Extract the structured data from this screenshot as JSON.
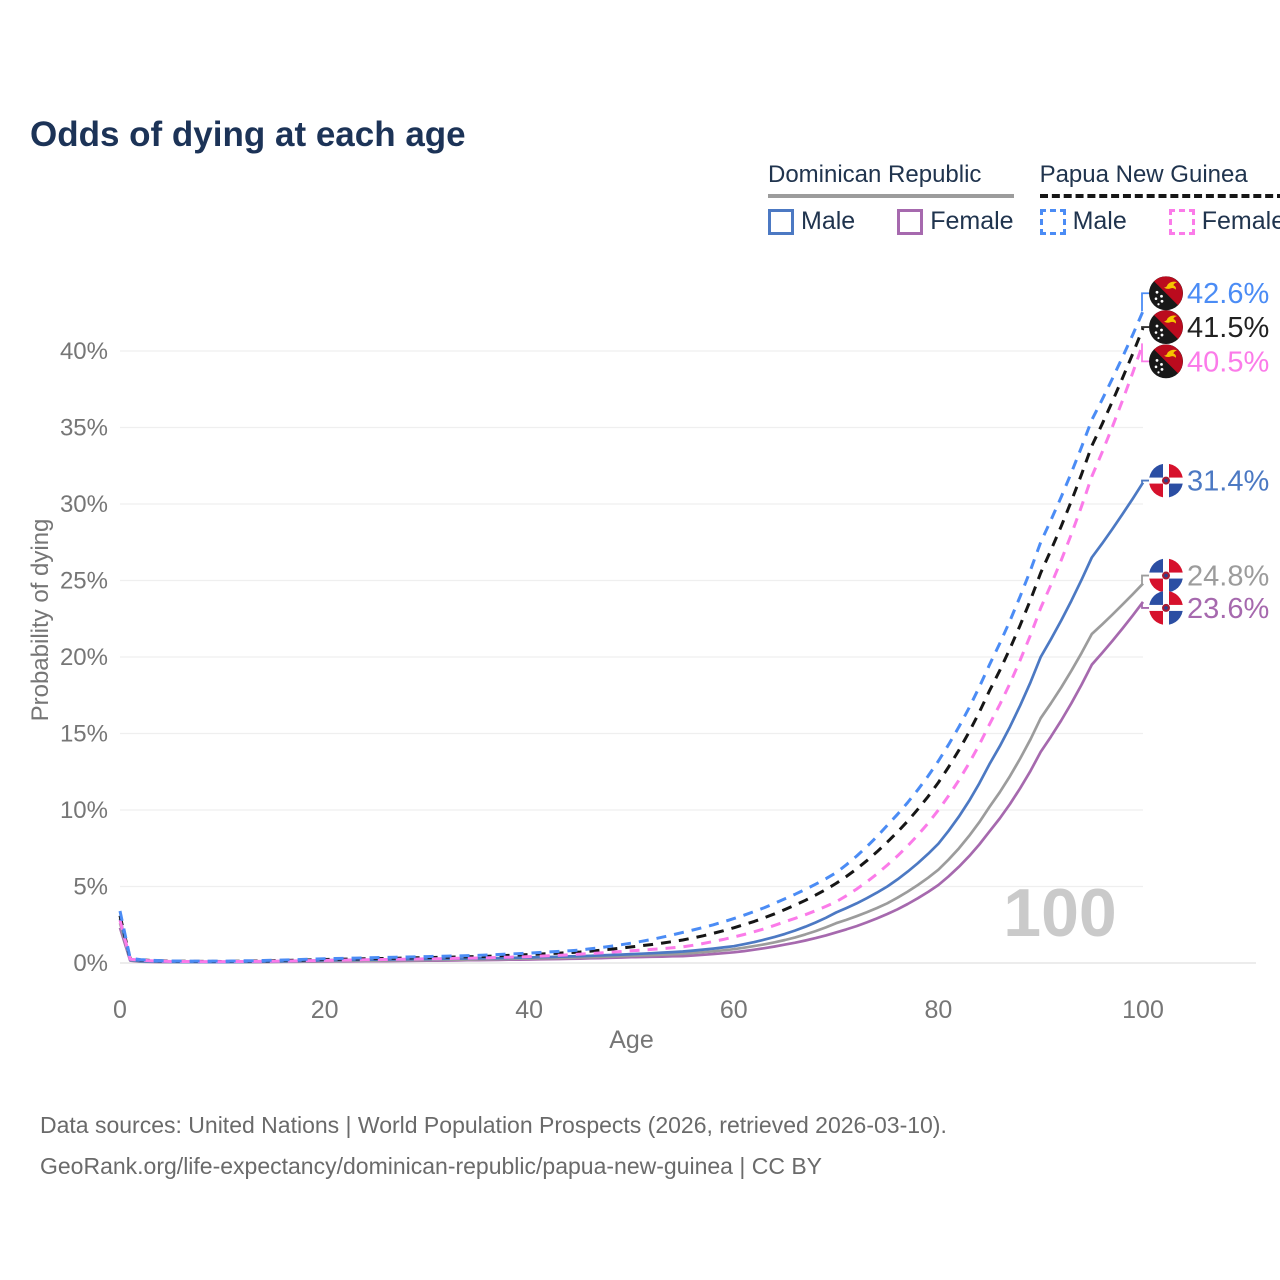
{
  "title": "Odds of dying at each age",
  "legend": {
    "groups": [
      {
        "label": "Dominican Republic",
        "underline_style": "solid",
        "underline_color": "#9c9c9c",
        "items": [
          {
            "label": "Male",
            "color": "#4c79c3",
            "dash": false
          },
          {
            "label": "Female",
            "color": "#a669ae",
            "dash": false
          }
        ]
      },
      {
        "label": "Papua New Guinea",
        "underline_style": "dashed",
        "underline_color": "#161616",
        "items": [
          {
            "label": "Male",
            "color": "#4b8cf5",
            "dash": true
          },
          {
            "label": "Female",
            "color": "#fb7be9",
            "dash": true
          }
        ]
      }
    ]
  },
  "chart_data": {
    "type": "line",
    "title": "Odds of dying at each age",
    "xlabel": "Age",
    "ylabel": "Probability of dying",
    "x_ticks": [
      0,
      20,
      40,
      60,
      80,
      100
    ],
    "y_ticks_percent": [
      0,
      5,
      10,
      15,
      20,
      25,
      30,
      35,
      40
    ],
    "xlim": [
      0,
      100
    ],
    "ylim_percent": [
      0,
      44
    ],
    "grid": "horizontal",
    "legend_position": "top-right",
    "watermark": "100",
    "ages": [
      0,
      1,
      2,
      5,
      10,
      15,
      20,
      25,
      30,
      35,
      40,
      45,
      50,
      55,
      60,
      65,
      70,
      75,
      80,
      85,
      90,
      95,
      100
    ],
    "series": [
      {
        "id": "png-male",
        "name": "Papua New Guinea — Male",
        "country": "Papua New Guinea",
        "sex": "Male",
        "color": "#4b8cf5",
        "dash": true,
        "flag": "png",
        "end_value": 42.6,
        "end_label": "42.6%",
        "values": [
          3.4,
          0.3,
          0.22,
          0.13,
          0.12,
          0.18,
          0.28,
          0.35,
          0.42,
          0.5,
          0.65,
          0.85,
          1.3,
          2.0,
          2.9,
          4.2,
          5.9,
          9.0,
          13.2,
          19.5,
          27.5,
          35.5,
          42.6
        ]
      },
      {
        "id": "png-both",
        "name": "Papua New Guinea — Both sexes",
        "country": "Papua New Guinea",
        "sex": "Both",
        "color": "#161616",
        "dash": true,
        "flag": "png",
        "end_value": 41.5,
        "end_label": "41.5%",
        "values": [
          3.1,
          0.27,
          0.2,
          0.12,
          0.1,
          0.15,
          0.23,
          0.29,
          0.35,
          0.42,
          0.55,
          0.72,
          1.05,
          1.5,
          2.3,
          3.5,
          5.2,
          7.9,
          11.8,
          17.8,
          25.5,
          33.8,
          41.5
        ]
      },
      {
        "id": "png-female",
        "name": "Papua New Guinea — Female",
        "country": "Papua New Guinea",
        "sex": "Female",
        "color": "#fb7be9",
        "dash": true,
        "flag": "png",
        "end_value": 40.5,
        "end_label": "40.5%",
        "values": [
          2.8,
          0.25,
          0.18,
          0.1,
          0.09,
          0.12,
          0.17,
          0.22,
          0.27,
          0.33,
          0.42,
          0.58,
          0.8,
          1.05,
          1.7,
          2.7,
          4.0,
          6.4,
          10.0,
          15.6,
          23.2,
          31.8,
          40.5
        ]
      },
      {
        "id": "dr-male",
        "name": "Dominican Republic — Male",
        "country": "Dominican Republic",
        "sex": "Male",
        "color": "#4c79c3",
        "dash": false,
        "flag": "dr",
        "end_value": 31.4,
        "end_label": "31.4%",
        "values": [
          2.9,
          0.2,
          0.12,
          0.07,
          0.06,
          0.1,
          0.18,
          0.22,
          0.26,
          0.3,
          0.36,
          0.45,
          0.58,
          0.75,
          1.1,
          1.9,
          3.3,
          5.0,
          7.8,
          13.0,
          20.0,
          26.5,
          31.4
        ]
      },
      {
        "id": "dr-both",
        "name": "Dominican Republic — Both sexes",
        "country": "Dominican Republic",
        "sex": "Both",
        "color": "#9c9c9c",
        "dash": false,
        "flag": "dr",
        "end_value": 24.8,
        "end_label": "24.8%",
        "values": [
          2.6,
          0.18,
          0.1,
          0.06,
          0.05,
          0.08,
          0.13,
          0.16,
          0.2,
          0.24,
          0.29,
          0.37,
          0.47,
          0.6,
          0.9,
          1.5,
          2.6,
          3.9,
          6.1,
          10.2,
          16.0,
          21.5,
          24.8
        ]
      },
      {
        "id": "dr-female",
        "name": "Dominican Republic — Female",
        "country": "Dominican Republic",
        "sex": "Female",
        "color": "#a669ae",
        "dash": false,
        "flag": "dr",
        "end_value": 23.6,
        "end_label": "23.6%",
        "values": [
          2.3,
          0.16,
          0.09,
          0.05,
          0.05,
          0.07,
          0.1,
          0.12,
          0.15,
          0.19,
          0.23,
          0.29,
          0.38,
          0.45,
          0.7,
          1.2,
          2.0,
          3.2,
          5.1,
          8.6,
          13.8,
          19.5,
          23.6
        ]
      }
    ]
  },
  "footer": {
    "line1": "Data sources: United Nations | World Population Prospects (2026, retrieved 2026-03-10).",
    "line2": "GeoRank.org/life-expectancy/dominican-republic/papua-new-guinea | CC BY"
  }
}
